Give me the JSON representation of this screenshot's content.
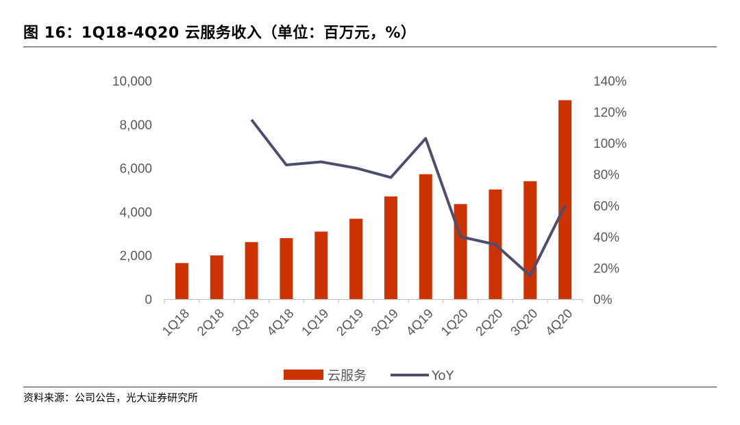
{
  "header": {
    "title": "图 16：1Q18-4Q20 云服务收入（单位：百万元，%）"
  },
  "footer": {
    "source": "资料来源：公司公告，光大证券研究所"
  },
  "chart_data": {
    "type": "bar",
    "categories": [
      "1Q18",
      "2Q18",
      "3Q18",
      "4Q18",
      "1Q19",
      "2Q19",
      "3Q19",
      "4Q19",
      "1Q20",
      "2Q20",
      "3Q20",
      "4Q20"
    ],
    "series": [
      {
        "name": "云服务",
        "type": "bar",
        "axis": "left",
        "color": "#cc3300",
        "values": [
          1650,
          2000,
          2610,
          2790,
          3090,
          3680,
          4700,
          5720,
          4350,
          5020,
          5400,
          9110
        ]
      },
      {
        "name": "YoY",
        "type": "line",
        "axis": "right",
        "color": "#4d4e6e",
        "values": [
          null,
          null,
          115,
          86,
          88,
          84,
          78,
          103,
          40,
          35,
          15,
          60
        ]
      }
    ],
    "y_left": {
      "ylim": [
        0,
        10000
      ],
      "ticks": [
        "0",
        "2,000",
        "4,000",
        "6,000",
        "8,000",
        "10,000"
      ]
    },
    "y_right": {
      "ylim": [
        0,
        140
      ],
      "ticks": [
        "0%",
        "20%",
        "40%",
        "60%",
        "80%",
        "100%",
        "120%",
        "140%"
      ]
    },
    "legend_position": "bottom",
    "grid": false
  }
}
